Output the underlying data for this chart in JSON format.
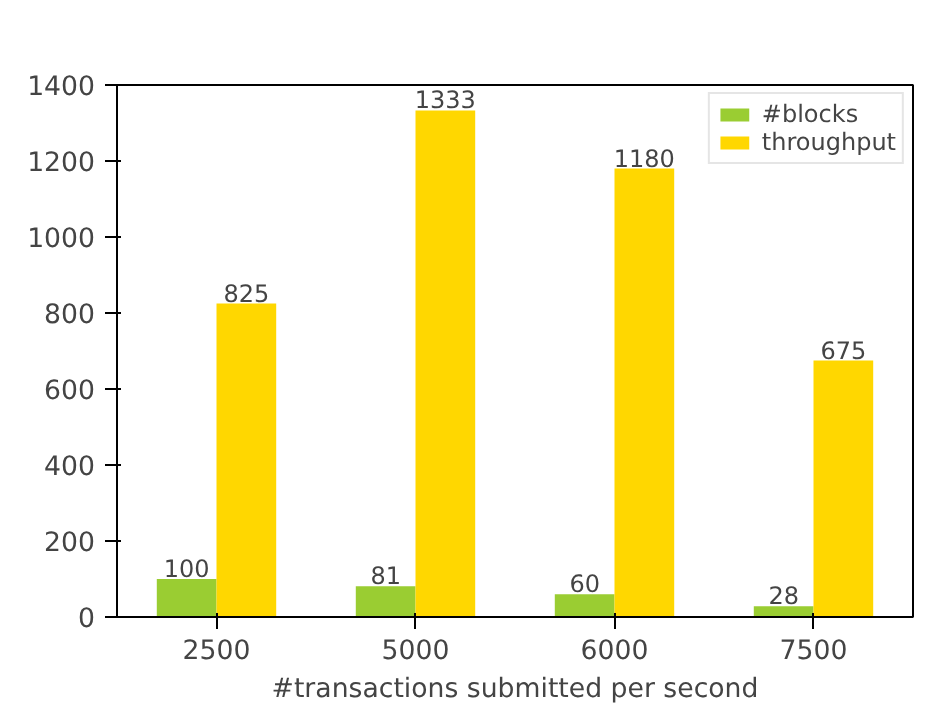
{
  "chart_data": {
    "type": "bar",
    "xlabel": "#transactions submitted per second",
    "categories": [
      "2500",
      "5000",
      "6000",
      "7500"
    ],
    "series": [
      {
        "name": "#blocks",
        "color": "#9acd32",
        "values": [
          100,
          81,
          60,
          28
        ]
      },
      {
        "name": "throughput",
        "color": "#ffd700",
        "values": [
          825,
          1333,
          1180,
          675
        ]
      }
    ],
    "ylim": [
      0,
      1400
    ],
    "yticks": [
      0,
      200,
      400,
      600,
      800,
      1000,
      1200,
      1400
    ],
    "data_labels": true,
    "legend": "top right",
    "grid": false
  }
}
